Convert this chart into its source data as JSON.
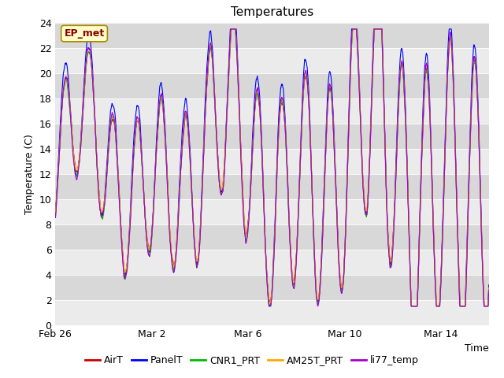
{
  "title": "Temperatures",
  "xlabel": "Time",
  "ylabel": "Temperature (C)",
  "ylim": [
    0,
    24
  ],
  "yticks": [
    0,
    2,
    4,
    6,
    8,
    10,
    12,
    14,
    16,
    18,
    20,
    22,
    24
  ],
  "xtick_labels": [
    "Feb 26",
    "Mar 2",
    "Mar 6",
    "Mar 10",
    "Mar 14"
  ],
  "xtick_positions": [
    0,
    4,
    8,
    12,
    16
  ],
  "xlim": [
    0,
    18
  ],
  "series_colors": [
    "#cc0000",
    "#0000ff",
    "#00bb00",
    "#ffaa00",
    "#aa00cc"
  ],
  "series_names": [
    "AirT",
    "PanelT",
    "CNR1_PRT",
    "AM25T_PRT",
    "li77_temp"
  ],
  "annotation_text": "EP_met",
  "annotation_color": "#8b0000",
  "annotation_bg": "#ffffcc",
  "annotation_border": "#aa8800",
  "fig_bg": "#ffffff",
  "plot_bg_light": "#ebebeb",
  "plot_bg_dark": "#d8d8d8",
  "grid_color": "#ffffff",
  "title_fontsize": 11,
  "axis_fontsize": 9,
  "legend_fontsize": 9,
  "linewidth": 0.8
}
